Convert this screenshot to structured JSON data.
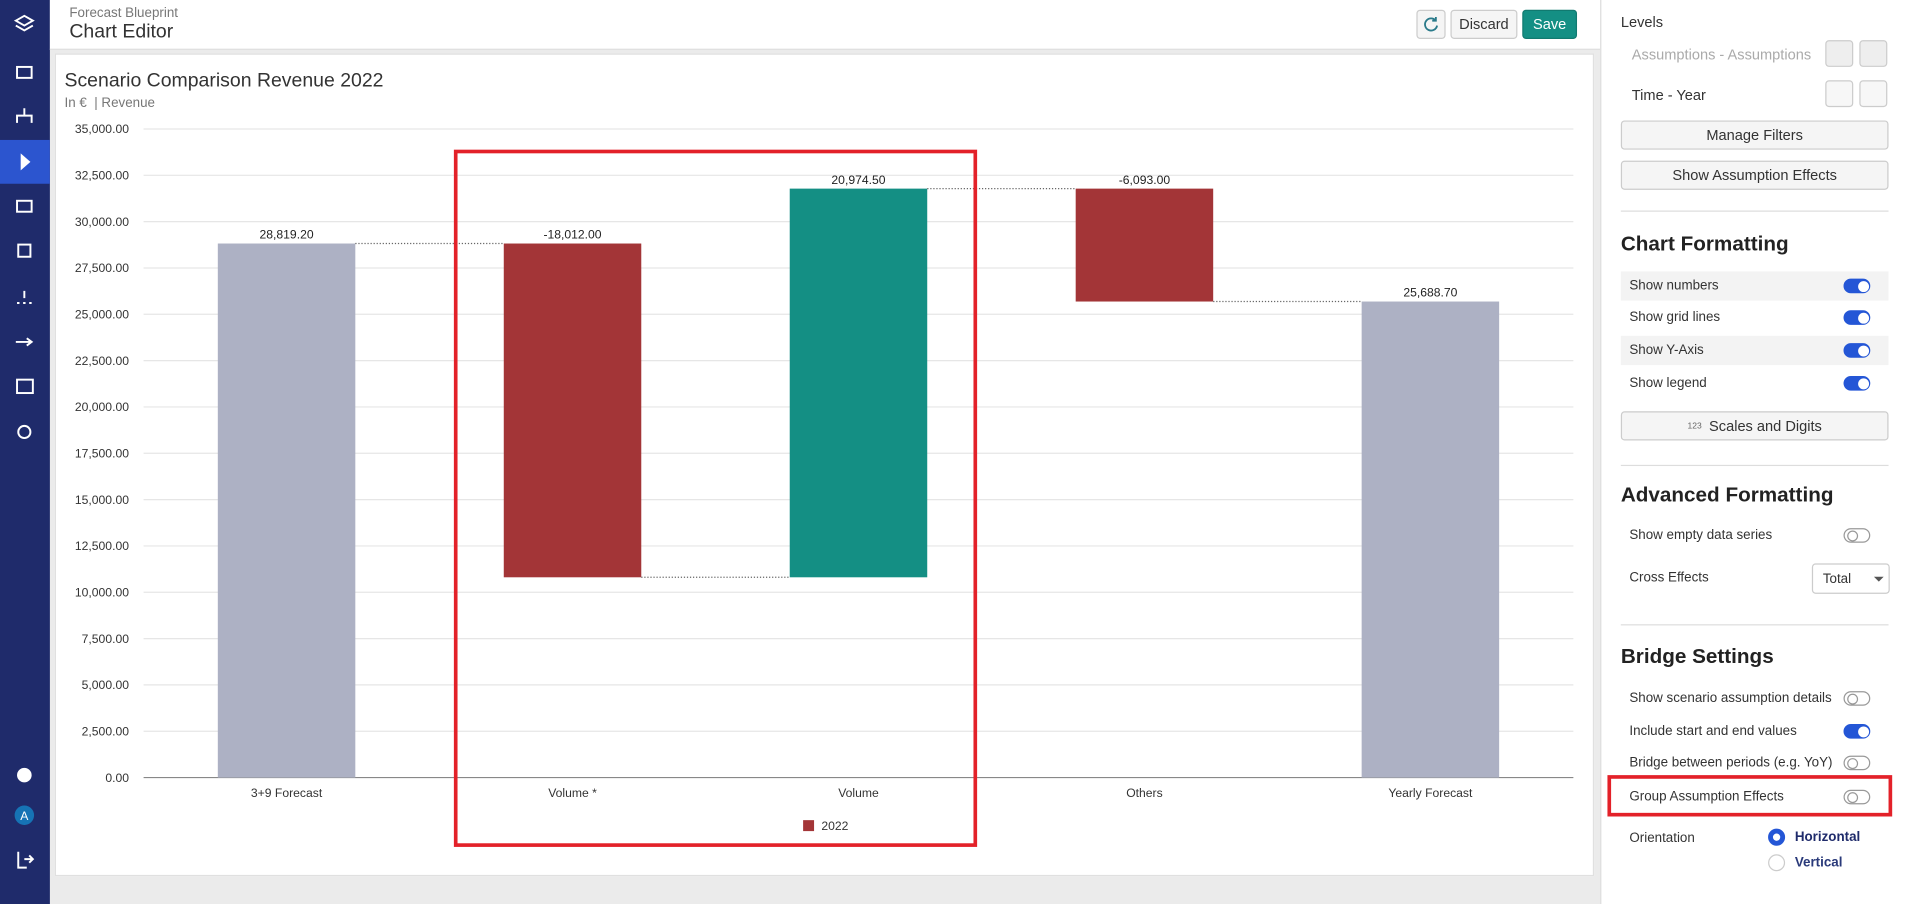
{
  "header": {
    "breadcrumb": "Forecast Blueprint",
    "title": "Chart Editor",
    "buttons": [
      "Discard",
      "Save"
    ]
  },
  "nav": {
    "avatar": "A"
  },
  "chart_data": {
    "type": "waterfall",
    "title": "Scenario Comparison Revenue 2022",
    "subtitle": "In €  | Revenue",
    "categories": [
      "3+9 Forecast",
      "Volume *",
      "Volume",
      "Others",
      "Yearly Forecast"
    ],
    "bar_kinds": [
      "total",
      "delta",
      "delta",
      "delta",
      "total"
    ],
    "kind_colors": {
      "total": "#adb1c4",
      "increase": "#148f84",
      "decrease": "#a33537"
    },
    "series": [
      {
        "name": "2022",
        "color": "#a33537",
        "values": [
          28819.2,
          -18012.0,
          20974.5,
          -6093.0,
          25688.7
        ],
        "value_labels": [
          "28,819.20",
          "-18,012.00",
          "20,974.50",
          "-6,093.00",
          "25,688.70"
        ]
      }
    ],
    "ylim": [
      0,
      35000
    ],
    "yticks": [
      {
        "value": 0,
        "label": "0.00"
      },
      {
        "value": 2500,
        "label": "2,500.00"
      },
      {
        "value": 5000,
        "label": "5,000.00"
      },
      {
        "value": 7500,
        "label": "7,500.00"
      },
      {
        "value": 10000,
        "label": "10,000.00"
      },
      {
        "value": 12500,
        "label": "12,500.00"
      },
      {
        "value": 15000,
        "label": "15,000.00"
      },
      {
        "value": 17500,
        "label": "17,500.00"
      },
      {
        "value": 20000,
        "label": "20,000.00"
      },
      {
        "value": 22500,
        "label": "22,500.00"
      },
      {
        "value": 25000,
        "label": "25,000.00"
      },
      {
        "value": 27500,
        "label": "27,500.00"
      },
      {
        "value": 30000,
        "label": "30,000.00"
      },
      {
        "value": 32500,
        "label": "32,500.00"
      },
      {
        "value": 35000,
        "label": "35,000.00"
      }
    ],
    "grid": true
  },
  "sidebar": {
    "levels": {
      "title": "Levels",
      "items": [
        "Assumptions - Assumptions",
        "Time - Year"
      ]
    },
    "actions": [
      "Manage Filters",
      "Show Assumption Effects"
    ],
    "chart_formatting": {
      "title": "Chart Formatting",
      "toggles": [
        {
          "label": "Show numbers",
          "on": true
        },
        {
          "label": "Show grid lines",
          "on": true
        },
        {
          "label": "Show Y-Axis",
          "on": true
        },
        {
          "label": "Show legend",
          "on": true
        }
      ],
      "button_icon": "123",
      "button": "Scales and Digits"
    },
    "advanced_formatting": {
      "title": "Advanced Formatting",
      "toggles": [
        {
          "label": "Show empty data series",
          "on": false
        }
      ],
      "dropdown": {
        "label": "Cross Effects",
        "value": "Total"
      }
    },
    "bridge_settings": {
      "title": "Bridge Settings",
      "toggles": [
        {
          "label": "Show scenario assumption details",
          "on": false
        },
        {
          "label": "Include start and end values",
          "on": true
        },
        {
          "label": "Bridge between periods (e.g. YoY)",
          "on": false
        },
        {
          "label": "Group Assumption Effects",
          "on": false
        }
      ],
      "orientation": {
        "label": "Orientation",
        "options": [
          {
            "label": "Horizontal",
            "selected": true
          },
          {
            "label": "Vertical",
            "selected": false
          }
        ]
      }
    }
  }
}
